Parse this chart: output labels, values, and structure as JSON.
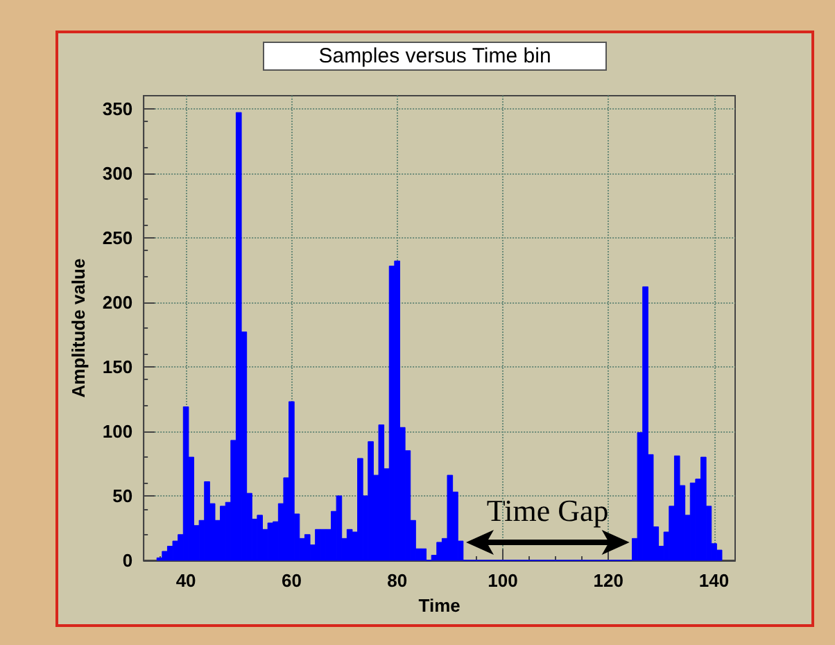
{
  "chart_data": {
    "type": "histogram",
    "title": "Samples versus Time bin",
    "xlabel": "Time",
    "ylabel": "Amplitude value",
    "bins": [
      34.5,
      35.5,
      36.5,
      37.5,
      38.5,
      39.5,
      40.5,
      41.5,
      42.5,
      43.5,
      44.5,
      45.5,
      46.5,
      47.5,
      48.5,
      49.5,
      50.5,
      51.5,
      52.5,
      53.5,
      54.5,
      55.5,
      56.5,
      57.5,
      58.5,
      59.5,
      60.5,
      61.5,
      62.5,
      63.5,
      64.5,
      65.5,
      66.5,
      67.5,
      68.5,
      69.5,
      70.5,
      71.5,
      72.5,
      73.5,
      74.5,
      75.5,
      76.5,
      77.5,
      78.5,
      79.5,
      80.5,
      81.5,
      82.5,
      83.5,
      84.5,
      85.5,
      86.5,
      87.5,
      88.5,
      89.5,
      90.5,
      91.5,
      92.5,
      93.5,
      94.5,
      95.5,
      96.5,
      97.5,
      98.5,
      99.5,
      100.5,
      101.5,
      102.5,
      103.5,
      104.5,
      105.5,
      106.5,
      107.5,
      108.5,
      109.5,
      110.5,
      111.5,
      112.5,
      113.5,
      114.5,
      115.5,
      116.5,
      117.5,
      118.5,
      119.5,
      120.5,
      121.5,
      122.5,
      123.5,
      124.5,
      125.5,
      126.5,
      127.5,
      128.5,
      129.5,
      130.5,
      131.5,
      132.5,
      133.5,
      134.5,
      135.5,
      136.5,
      137.5,
      138.5,
      139.5,
      140.5,
      141.5
    ],
    "values": [
      2,
      7,
      11,
      15,
      20,
      119,
      80,
      27,
      31,
      61,
      44,
      31,
      42,
      45,
      93,
      347,
      177,
      52,
      32,
      35,
      24,
      29,
      30,
      44,
      64,
      123,
      36,
      17,
      20,
      12,
      24,
      24,
      24,
      38,
      50,
      17,
      24,
      22,
      79,
      50,
      92,
      66,
      105,
      71,
      228,
      232,
      103,
      85,
      31,
      9,
      9,
      0,
      4,
      14,
      17,
      66,
      53,
      15,
      0,
      0,
      0,
      0,
      0,
      0,
      0,
      0,
      0,
      0,
      0,
      0,
      0,
      0,
      0,
      0,
      0,
      0,
      0,
      0,
      0,
      0,
      0,
      0,
      0,
      0,
      0,
      0,
      0,
      0,
      0,
      0,
      17,
      99,
      212,
      82,
      26,
      11,
      22,
      42,
      81,
      58,
      35,
      60,
      63,
      80,
      42,
      13,
      8
    ],
    "color": "#0000ff",
    "xlim": [
      32,
      144
    ],
    "xticks": [
      40,
      60,
      80,
      100,
      120,
      140
    ],
    "ylim": [
      0,
      360
    ],
    "yticks": [
      0,
      50,
      100,
      150,
      200,
      250,
      300,
      350
    ],
    "grid": true,
    "annotations": [
      "Time Gap"
    ]
  }
}
